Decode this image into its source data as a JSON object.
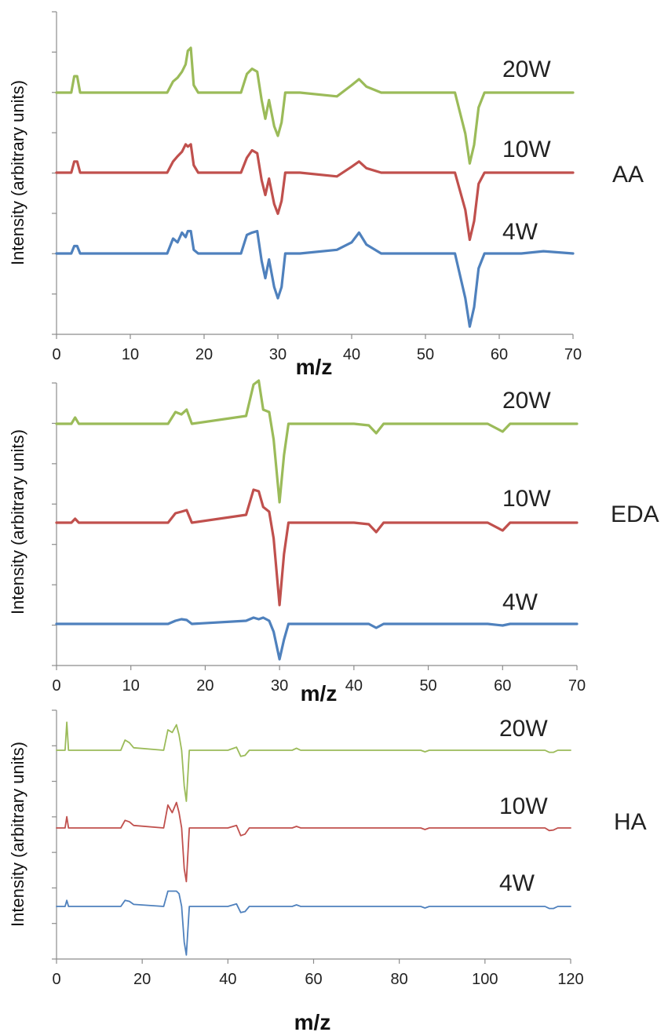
{
  "chart_data": [
    {
      "type": "line",
      "title": "",
      "compound": "AA",
      "xlabel": "m/z",
      "ylabel": "Intensity (arbitrary units)",
      "xlim": [
        0,
        70
      ],
      "xticks": [
        "0",
        "10",
        "20",
        "30",
        "40",
        "50",
        "60",
        "70"
      ],
      "grid": false,
      "series": [
        {
          "name": "20W",
          "color": "#9bbb59",
          "x": [
            0,
            2,
            2.4,
            2.8,
            3.2,
            15,
            15.8,
            16.4,
            17,
            17.5,
            17.8,
            18.2,
            18.6,
            19.2,
            25,
            25.8,
            26.5,
            27.2,
            27.8,
            28.3,
            28.8,
            29.5,
            30,
            30.5,
            31,
            33,
            38,
            40,
            41,
            42,
            44,
            50,
            54,
            55.4,
            56,
            56.6,
            57.2,
            58,
            60,
            63,
            66,
            70
          ],
          "y": [
            0,
            0,
            0.22,
            0.22,
            0,
            0,
            0.15,
            0.2,
            0.28,
            0.38,
            0.56,
            0.6,
            0.1,
            0,
            0,
            0.25,
            0.32,
            0.28,
            -0.1,
            -0.35,
            -0.1,
            -0.45,
            -0.58,
            -0.4,
            0,
            0,
            -0.05,
            0.1,
            0.18,
            0.08,
            0,
            0,
            0,
            -0.55,
            -0.95,
            -0.7,
            -0.2,
            0,
            0,
            0,
            0,
            0
          ]
        },
        {
          "name": "10W",
          "color": "#c0504d",
          "x": [
            0,
            2,
            2.4,
            2.8,
            3.2,
            15,
            15.8,
            16.4,
            17,
            17.5,
            17.8,
            18.2,
            18.6,
            19.2,
            25,
            25.8,
            26.5,
            27.2,
            27.8,
            28.3,
            28.8,
            29.5,
            30,
            30.5,
            31,
            33,
            38,
            40,
            41,
            42,
            44,
            50,
            54,
            55.4,
            56,
            56.6,
            57.2,
            58,
            60,
            63,
            66,
            70
          ],
          "y": [
            0,
            0,
            0.15,
            0.15,
            0,
            0,
            0.15,
            0.22,
            0.28,
            0.38,
            0.35,
            0.38,
            0.1,
            0,
            0,
            0.2,
            0.3,
            0.26,
            -0.1,
            -0.3,
            -0.08,
            -0.42,
            -0.55,
            -0.38,
            0,
            0,
            -0.05,
            0.08,
            0.15,
            0.06,
            0,
            0,
            0,
            -0.5,
            -0.9,
            -0.65,
            -0.15,
            0,
            0,
            0,
            0,
            0
          ]
        },
        {
          "name": "4W",
          "color": "#4f81bd",
          "x": [
            0,
            2,
            2.4,
            2.8,
            3.2,
            15,
            15.8,
            16.4,
            17,
            17.5,
            17.8,
            18.2,
            18.6,
            19.2,
            25,
            25.8,
            26.5,
            27.2,
            27.8,
            28.3,
            28.8,
            29.5,
            30,
            30.5,
            31,
            33,
            38,
            40,
            41,
            42,
            44,
            50,
            54,
            55.4,
            56,
            56.6,
            57.2,
            58,
            60,
            63,
            66,
            70
          ],
          "y": [
            0,
            0,
            0.1,
            0.1,
            0,
            0,
            0.2,
            0.15,
            0.28,
            0.22,
            0.3,
            0.3,
            0.05,
            0,
            0,
            0.25,
            0.28,
            0.3,
            -0.1,
            -0.33,
            -0.08,
            -0.45,
            -0.6,
            -0.45,
            0,
            0,
            0.05,
            0.15,
            0.28,
            0.12,
            0,
            0,
            0,
            -0.6,
            -0.98,
            -0.72,
            -0.2,
            0,
            0,
            0,
            0.03,
            0
          ]
        }
      ]
    },
    {
      "type": "line",
      "title": "",
      "compound": "EDA",
      "xlabel": "m/z",
      "ylabel": "Intensity (arbitrary units)",
      "xlim": [
        0,
        70
      ],
      "xticks": [
        "0",
        "10",
        "20",
        "30",
        "40",
        "50",
        "60",
        "70"
      ],
      "grid": false,
      "series": [
        {
          "name": "20W",
          "color": "#9bbb59",
          "x": [
            0,
            2,
            2.5,
            3,
            15,
            16,
            16.8,
            17.5,
            18.2,
            25.5,
            26.5,
            27.2,
            27.8,
            28.6,
            29.2,
            30,
            30.6,
            31.2,
            40,
            42,
            43,
            44,
            58,
            60,
            61,
            70
          ],
          "y": [
            0,
            0,
            0.08,
            0,
            0,
            0.15,
            0.12,
            0.18,
            0,
            0.1,
            0.5,
            0.55,
            0.18,
            0.15,
            -0.2,
            -1.0,
            -0.4,
            0,
            0,
            -0.02,
            -0.12,
            0,
            0,
            -0.1,
            0,
            0
          ]
        },
        {
          "name": "10W",
          "color": "#c0504d",
          "x": [
            0,
            2,
            2.5,
            3,
            15,
            16,
            16.8,
            17.5,
            18.2,
            25.5,
            26.5,
            27.2,
            27.8,
            28.6,
            29.2,
            30,
            30.6,
            31.2,
            40,
            42,
            43,
            44,
            58,
            60,
            61,
            70
          ],
          "y": [
            0,
            0,
            0.05,
            0,
            0,
            0.12,
            0.14,
            0.16,
            0,
            0.1,
            0.42,
            0.4,
            0.2,
            0.14,
            -0.2,
            -1.05,
            -0.4,
            0,
            0,
            -0.02,
            -0.12,
            0,
            0,
            -0.1,
            0,
            0
          ]
        },
        {
          "name": "4W",
          "color": "#4f81bd",
          "x": [
            0,
            2,
            2.5,
            3,
            15,
            16,
            16.8,
            17.5,
            18.2,
            25.5,
            26.5,
            27.2,
            27.8,
            28.6,
            29.2,
            30,
            30.6,
            31.2,
            40,
            42,
            43,
            44,
            58,
            60,
            61,
            70
          ],
          "y": [
            0,
            0,
            0,
            0,
            0,
            0.04,
            0.06,
            0.05,
            0,
            0.04,
            0.08,
            0.06,
            0.08,
            0.04,
            -0.1,
            -0.45,
            -0.2,
            0,
            0,
            0,
            -0.05,
            0,
            0,
            -0.02,
            0,
            0
          ]
        }
      ]
    },
    {
      "type": "line",
      "title": "",
      "compound": "HA",
      "xlabel": "m/z",
      "ylabel": "Intensity (arbitrary units)",
      "xlim": [
        0,
        120
      ],
      "xticks": [
        "0",
        "20",
        "40",
        "60",
        "80",
        "100",
        "120"
      ],
      "grid": false,
      "series": [
        {
          "name": "20W",
          "color": "#9bbb59",
          "x": [
            0,
            2,
            2.4,
            2.8,
            15,
            16,
            17,
            18,
            25,
            26,
            27,
            28,
            28.6,
            29.2,
            29.8,
            30.3,
            31,
            40,
            42,
            43,
            44,
            45,
            55,
            56,
            57,
            85,
            86,
            87,
            114,
            115,
            116,
            117,
            120
          ],
          "y": [
            0,
            0,
            0.55,
            0,
            0,
            0.2,
            0.15,
            0.05,
            0,
            0.4,
            0.35,
            0.5,
            0.3,
            0,
            -0.7,
            -1.0,
            0,
            0,
            0.06,
            -0.12,
            -0.1,
            0,
            0,
            0.04,
            0,
            0,
            -0.03,
            0,
            0,
            -0.04,
            -0.04,
            0,
            0
          ]
        },
        {
          "name": "10W",
          "color": "#c0504d",
          "x": [
            0,
            2,
            2.4,
            2.8,
            15,
            16,
            17,
            18,
            25,
            26,
            27,
            28,
            28.6,
            29.2,
            29.8,
            30.3,
            31,
            40,
            42,
            43,
            44,
            45,
            55,
            56,
            57,
            85,
            86,
            87,
            114,
            115,
            116,
            117,
            120
          ],
          "y": [
            0,
            0,
            0.22,
            0,
            0,
            0.15,
            0.12,
            0.05,
            0,
            0.45,
            0.3,
            0.5,
            0.3,
            0,
            -0.8,
            -1.05,
            0,
            0,
            0.05,
            -0.15,
            -0.12,
            0,
            0,
            0.03,
            0,
            0,
            -0.03,
            0,
            0,
            -0.05,
            -0.04,
            0,
            0
          ]
        },
        {
          "name": "4W",
          "color": "#4f81bd",
          "x": [
            0,
            2,
            2.4,
            2.8,
            15,
            16,
            17,
            18,
            25,
            26,
            27,
            28,
            28.6,
            29.2,
            29.8,
            30.3,
            31,
            40,
            42,
            43,
            44,
            45,
            55,
            56,
            57,
            85,
            86,
            87,
            114,
            115,
            116,
            117,
            120
          ],
          "y": [
            0,
            0,
            0.12,
            0,
            0,
            0.12,
            0.1,
            0.04,
            0,
            0.3,
            0.3,
            0.3,
            0.25,
            0,
            -0.7,
            -0.95,
            0,
            0,
            0.05,
            -0.12,
            -0.1,
            0,
            0,
            0.03,
            0,
            0,
            -0.03,
            0,
            0,
            -0.04,
            -0.04,
            0,
            0
          ]
        }
      ]
    }
  ]
}
